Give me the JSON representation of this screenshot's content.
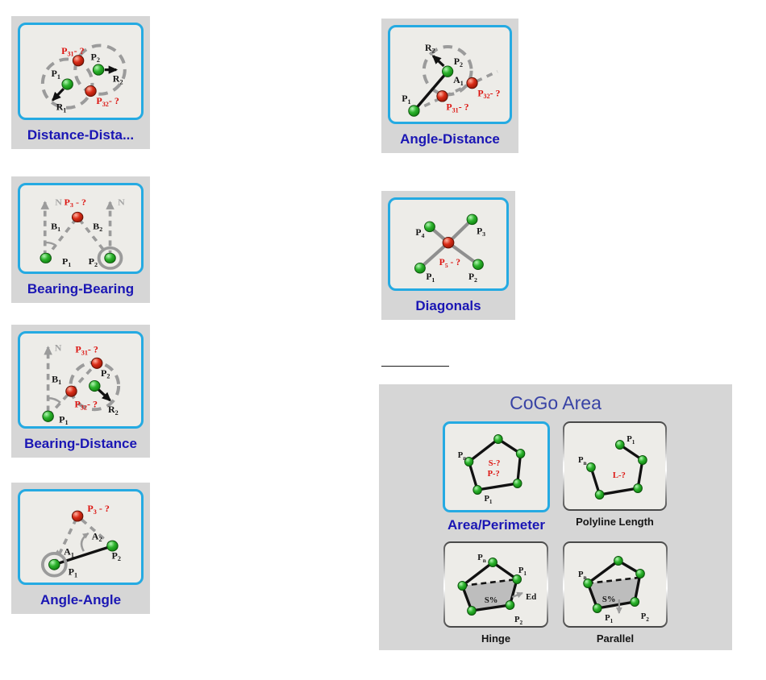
{
  "colors": {
    "accent_cyan": "#25aae2",
    "card_background": "#d6d6d6",
    "box_background": "#edece8",
    "tool_label_blue": "#1a16b4",
    "panel_title_blue": "#3843a5",
    "question_red": "#dc1410",
    "point_green": "#1daa1d",
    "point_red": "#c62106",
    "construction_gray": "#9b9b9b"
  },
  "tools": [
    {
      "id": "distance-distance",
      "label": "Distance-Dista...",
      "labels": {
        "p31": "P~31~- ?",
        "p2": "P~2~",
        "p1": "P~1~",
        "r2": "R~2~",
        "r1": "R~1~",
        "p32": "P~32~- ?"
      }
    },
    {
      "id": "bearing-bearing",
      "label": "Bearing-Bearing",
      "labels": {
        "n1": "N",
        "n2": "N",
        "p3": "P~3~ - ?",
        "b1": "B~1~",
        "b2": "B~2~",
        "p1": "P~1~",
        "p2": "P~2~"
      }
    },
    {
      "id": "bearing-distance",
      "label": "Bearing-Distance",
      "labels": {
        "n": "N",
        "p31": "P~31~- ?",
        "b1": "B~1~",
        "p2": "P~2~",
        "p32": "P~32~- ?",
        "r2": "R~2~",
        "p1": "P~1~"
      }
    },
    {
      "id": "angle-angle",
      "label": "Angle-Angle",
      "labels": {
        "p3": "P~3~ - ?",
        "a2": "A~2~",
        "a1": "A~1~",
        "p2": "P~2~",
        "p1": "P~1~"
      }
    },
    {
      "id": "angle-distance",
      "label": "Angle-Distance",
      "labels": {
        "r2": "R~2~",
        "p2": "P~2~",
        "a1": "A~1~",
        "p31": "P~31~- ?",
        "p32": "P~32~- ?",
        "p1": "P~1~"
      }
    },
    {
      "id": "diagonals",
      "label": "Diagonals",
      "labels": {
        "p4": "P~4~",
        "p3": "P~3~",
        "p5": "P~5~ - ?",
        "p1": "P~1~",
        "p2": "P~2~"
      }
    }
  ],
  "cogo_area": {
    "title": "CoGo Area",
    "buttons": [
      {
        "id": "area-perimeter",
        "label": "Area/Perimeter",
        "selected": true,
        "labels": {
          "pn": "P~n~",
          "p1": "P~1~",
          "s": "S-?",
          "p": "P-?"
        }
      },
      {
        "id": "polyline-length",
        "label": "Polyline Length",
        "selected": false,
        "labels": {
          "p1": "P~1~",
          "pn": "P~n~",
          "l": "L-?"
        }
      },
      {
        "id": "hinge",
        "label": "Hinge",
        "selected": false,
        "labels": {
          "pn": "P~n~",
          "p1": "P~1~",
          "s": "S%",
          "ed": "Ed",
          "p2": "P~2~"
        }
      },
      {
        "id": "parallel",
        "label": "Parallel",
        "selected": false,
        "labels": {
          "pn": "P~n~",
          "s": "S%",
          "p1": "P~1~",
          "p2": "P~2~"
        }
      }
    ]
  }
}
